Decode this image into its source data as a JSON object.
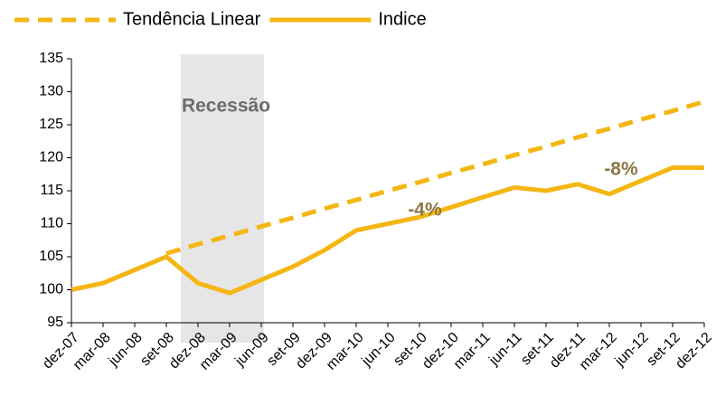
{
  "chart_data": {
    "type": "line",
    "categories": [
      "dez-07",
      "mar-08",
      "jun-08",
      "set-08",
      "dez-08",
      "mar-09",
      "jun-09",
      "set-09",
      "dez-09",
      "mar-10",
      "jun-10",
      "set-10",
      "dez-10",
      "mar-11",
      "jun-11",
      "set-11",
      "dez-11",
      "mar-12",
      "jun-12",
      "set-12",
      "dez-12"
    ],
    "series": [
      {
        "name": "Tendência Linear",
        "color": "#f5b614",
        "dashed": true,
        "values": [
          null,
          null,
          null,
          105.5,
          106.9,
          108.2,
          109.6,
          110.9,
          112.3,
          113.6,
          115.0,
          116.3,
          117.7,
          119.0,
          120.4,
          121.7,
          123.1,
          124.4,
          125.8,
          127.1,
          128.5
        ]
      },
      {
        "name": "Indice",
        "color": "#f5b614",
        "dashed": false,
        "values": [
          100,
          101,
          103,
          105,
          101,
          99.5,
          101.5,
          103.5,
          106,
          109,
          110,
          111,
          112.5,
          114,
          115.5,
          115,
          116,
          114.5,
          116.5,
          118.5,
          118.5
        ]
      }
    ],
    "ylim": [
      95,
      135
    ],
    "yticks": [
      95,
      100,
      105,
      110,
      115,
      120,
      125,
      130,
      135
    ],
    "annotations": [
      "Recessão",
      "-4%",
      "-8%"
    ],
    "legend": "top"
  }
}
